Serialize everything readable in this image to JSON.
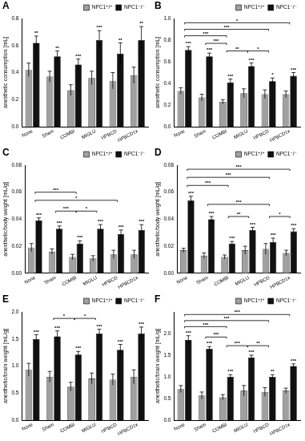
{
  "chart_data": [
    {
      "type": "bar",
      "title": "A",
      "y_label": "anesthetic consumption [mL]",
      "categories": [
        "None",
        "Sham",
        "COMBI",
        "MIGLU",
        "HPBCD",
        "HPBCD1x"
      ],
      "series": [
        {
          "name": "NPC1⁺/⁺",
          "color": "#a0a0a0",
          "values": [
            0.42,
            0.37,
            0.27,
            0.36,
            0.34,
            0.38
          ],
          "errors": [
            0.05,
            0.04,
            0.04,
            0.05,
            0.06,
            0.06
          ]
        },
        {
          "name": "NPC1⁻/⁻",
          "color": "#111111",
          "values": [
            0.62,
            0.52,
            0.46,
            0.64,
            0.54,
            0.64
          ],
          "errors": [
            0.05,
            0.04,
            0.04,
            0.07,
            0.08,
            0.1
          ],
          "significance": [
            "**",
            "**",
            "***",
            "***",
            "**",
            "**"
          ]
        }
      ],
      "ylim": [
        0,
        0.8
      ],
      "yticks": [
        {
          "value": 0,
          "label": "0.0"
        },
        0.2,
        0.4,
        0.6,
        0.8
      ],
      "grid": false,
      "legend": "upper right",
      "comparisons": []
    },
    {
      "type": "bar",
      "title": "B",
      "y_label": "anesthetic consumption [mL]",
      "categories": [
        "None",
        "Sham",
        "COMBI",
        "MIGLU",
        "HPBCD",
        "HPBCD1x"
      ],
      "series": [
        {
          "name": "NPC1⁺/⁺",
          "color": "#a0a0a0",
          "values": [
            0.33,
            0.27,
            0.23,
            0.31,
            0.3,
            0.3
          ],
          "errors": [
            0.03,
            0.03,
            0.02,
            0.04,
            0.04,
            0.03
          ]
        },
        {
          "name": "NPC1⁻/⁻",
          "color": "#111111",
          "values": [
            0.71,
            0.65,
            0.41,
            0.56,
            0.42,
            0.47
          ],
          "errors": [
            0.03,
            0.03,
            0.03,
            0.03,
            0.03,
            0.03
          ],
          "significance": [
            "***",
            "***",
            "***",
            "***",
            "*",
            "***"
          ]
        }
      ],
      "ylim": [
        0,
        1
      ],
      "yticks": [
        {
          "value": 0,
          "label": "0.0"
        },
        0.2,
        0.4,
        0.6,
        0.8,
        {
          "value": 1,
          "label": "1.0"
        }
      ],
      "grid": false,
      "legend": "upper right",
      "comparisons": [
        {
          "from": "None",
          "to": "HPBCD1x",
          "y": 0.96,
          "label": "*"
        },
        {
          "from": "None",
          "to": "HPBCD",
          "y": 0.9,
          "label": "***"
        },
        {
          "from": "None",
          "to": "COMBI",
          "y": 0.84,
          "label": "***"
        },
        {
          "from": "Sham",
          "to": "COMBI",
          "y": 0.77,
          "label": "***"
        },
        {
          "from": "COMBI",
          "to": "MIGLU",
          "y": 0.7,
          "label": "**"
        },
        {
          "from": "MIGLU",
          "to": "HPBCD",
          "y": 0.7,
          "label": "*"
        }
      ]
    },
    {
      "type": "bar",
      "title": "C",
      "y_label": "anesthetic/body weight [mL/g]",
      "categories": [
        "None",
        "Sham",
        "COMBI",
        "MIGLU",
        "HPBCD",
        "HPBCD1x"
      ],
      "series": [
        {
          "name": "NPC1⁺/⁺",
          "color": "#a0a0a0",
          "values": [
            0.019,
            0.016,
            0.012,
            0.011,
            0.014,
            0.014
          ],
          "errors": [
            0.003,
            0.002,
            0.002,
            0.002,
            0.003,
            0.003
          ]
        },
        {
          "name": "NPC1⁻/⁻",
          "color": "#111111",
          "values": [
            0.039,
            0.033,
            0.022,
            0.033,
            0.029,
            0.032
          ],
          "errors": [
            0.002,
            0.002,
            0.002,
            0.003,
            0.003,
            0.004
          ],
          "significance": [
            "***",
            "***",
            "***",
            "***",
            "***",
            "***"
          ]
        }
      ],
      "ylim": [
        0,
        0.08
      ],
      "yticks": [
        {
          "value": 0,
          "label": "0.00"
        },
        0.02,
        0.04,
        0.06,
        0.08
      ],
      "grid": false,
      "legend": "upper right",
      "comparisons": [
        {
          "from": "None",
          "to": "COMBI",
          "y": 0.06,
          "label": "***"
        },
        {
          "from": "None",
          "to": "HPBCD",
          "y": 0.054,
          "label": "*"
        },
        {
          "from": "Sham",
          "to": "COMBI",
          "y": 0.046,
          "label": "***"
        },
        {
          "from": "COMBI",
          "to": "MIGLU",
          "y": 0.046,
          "label": "*"
        }
      ]
    },
    {
      "type": "bar",
      "title": "D",
      "y_label": "anesthetic/body weight [mL/g]",
      "categories": [
        "None",
        "Sham",
        "COMBI",
        "MIGLU",
        "HPBCD",
        "HPBCD1x"
      ],
      "series": [
        {
          "name": "NPC1⁺/⁺",
          "color": "#a0a0a0",
          "values": [
            0.017,
            0.013,
            0.012,
            0.017,
            0.018,
            0.015
          ],
          "errors": [
            0.0015,
            0.002,
            0.0015,
            0.003,
            0.004,
            0.002
          ]
        },
        {
          "name": "NPC1⁻/⁻",
          "color": "#111111",
          "values": [
            0.054,
            0.04,
            0.022,
            0.032,
            0.023,
            0.031
          ],
          "errors": [
            0.003,
            0.002,
            0.0015,
            0.002,
            0.003,
            0.002
          ],
          "significance": [
            "***",
            "***",
            "***",
            "***",
            "***",
            "***"
          ]
        }
      ],
      "ylim": [
        0,
        0.08
      ],
      "yticks": [
        {
          "value": 0,
          "label": "0.00"
        },
        0.02,
        0.04,
        0.06,
        0.08
      ],
      "grid": false,
      "legend": "upper right",
      "comparisons": [
        {
          "from": "None",
          "to": "HPBCD1x",
          "y": 0.077,
          "label": "***"
        },
        {
          "from": "None",
          "to": "HPBCD",
          "y": 0.071,
          "label": "***"
        },
        {
          "from": "None",
          "to": "COMBI",
          "y": 0.065,
          "label": "***"
        },
        {
          "from": "Sham",
          "to": "HPBCD",
          "y": 0.051,
          "label": "***"
        },
        {
          "from": "COMBI",
          "to": "MIGLU",
          "y": 0.042,
          "label": "**"
        },
        {
          "from": "HPBCD",
          "to": "HPBCD1x",
          "y": 0.042,
          "label": "*"
        }
      ]
    },
    {
      "type": "bar",
      "title": "E",
      "y_label": "anesthetic/brain weight [mL/g]",
      "categories": [
        "None",
        "Sham",
        "COMBI",
        "MIGLU",
        "HPBCD",
        "HPBCD1x"
      ],
      "series": [
        {
          "name": "NPC1⁺/⁺",
          "color": "#a0a0a0",
          "values": [
            0.93,
            0.8,
            0.62,
            0.77,
            0.75,
            0.8
          ],
          "errors": [
            0.12,
            0.1,
            0.08,
            0.1,
            0.1,
            0.13
          ]
        },
        {
          "name": "NPC1⁻/⁻",
          "color": "#111111",
          "values": [
            1.5,
            1.55,
            1.21,
            1.6,
            1.3,
            1.6
          ],
          "errors": [
            0.08,
            0.1,
            0.06,
            0.08,
            0.1,
            0.12
          ],
          "significance": [
            "***",
            "***",
            "***",
            "***",
            "***",
            "***"
          ]
        }
      ],
      "ylim": [
        0,
        2
      ],
      "yticks": [
        {
          "value": 0,
          "label": "0.0"
        },
        0.5,
        {
          "value": 1,
          "label": "1.0"
        },
        1.5,
        {
          "value": 2,
          "label": "2.0"
        }
      ],
      "grid": false,
      "legend": "upper right",
      "comparisons": [
        {
          "from": "Sham",
          "to": "COMBI",
          "y": 1.88,
          "label": "*"
        },
        {
          "from": "COMBI",
          "to": "MIGLU",
          "y": 1.88,
          "label": "*"
        }
      ]
    },
    {
      "type": "bar",
      "title": "F",
      "y_label": "anesthetic/brain weight [mL/g]",
      "categories": [
        "None",
        "Sham",
        "COMBI",
        "MIGLU",
        "HPBCD",
        "HPBCD1x"
      ],
      "series": [
        {
          "name": "NPC1⁺/⁺",
          "color": "#a0a0a0",
          "values": [
            0.72,
            0.57,
            0.53,
            0.68,
            0.65,
            0.68
          ],
          "errors": [
            0.08,
            0.08,
            0.06,
            0.12,
            0.1,
            0.06
          ]
        },
        {
          "name": "NPC1⁻/⁻",
          "color": "#111111",
          "values": [
            1.85,
            1.65,
            1.0,
            1.45,
            1.0,
            1.25
          ],
          "errors": [
            0.1,
            0.05,
            0.05,
            0.05,
            0.05,
            0.05
          ],
          "significance": [
            "***",
            "***",
            "***",
            "***",
            "**",
            "***"
          ]
        }
      ],
      "ylim": [
        0,
        2.5
      ],
      "yticks": [
        {
          "value": 0,
          "label": "0.0"
        },
        0.5,
        {
          "value": 1,
          "label": "1.0"
        },
        1.5,
        {
          "value": 2,
          "label": "2.0"
        }
      ],
      "grid": false,
      "legend": "upper right",
      "comparisons": [
        {
          "from": "None",
          "to": "HPBCD1x",
          "y": 2.44,
          "label": "***"
        },
        {
          "from": "None",
          "to": "HPBCD",
          "y": 2.3,
          "label": "***"
        },
        {
          "from": "None",
          "to": "COMBI",
          "y": 2.16,
          "label": "***"
        },
        {
          "from": "Sham",
          "to": "COMBI",
          "y": 1.92,
          "label": "***"
        },
        {
          "from": "COMBI",
          "to": "MIGLU",
          "y": 1.72,
          "label": "***"
        },
        {
          "from": "MIGLU",
          "to": "HPBCD",
          "y": 1.72,
          "label": "**"
        }
      ]
    }
  ]
}
